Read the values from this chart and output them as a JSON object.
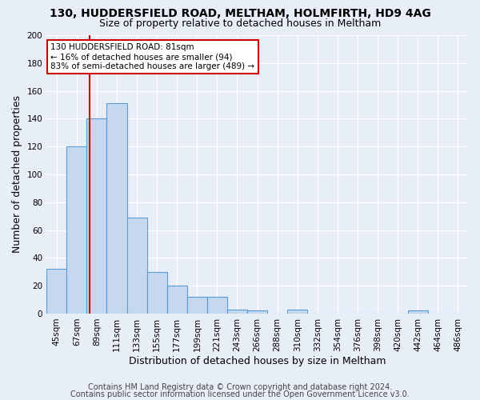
{
  "title1": "130, HUDDERSFIELD ROAD, MELTHAM, HOLMFIRTH, HD9 4AG",
  "title2": "Size of property relative to detached houses in Meltham",
  "xlabel": "Distribution of detached houses by size in Meltham",
  "ylabel": "Number of detached properties",
  "footer1": "Contains HM Land Registry data © Crown copyright and database right 2024.",
  "footer2": "Contains public sector information licensed under the Open Government Licence v3.0.",
  "bar_labels": [
    "45sqm",
    "67sqm",
    "89sqm",
    "111sqm",
    "133sqm",
    "155sqm",
    "177sqm",
    "199sqm",
    "221sqm",
    "243sqm",
    "266sqm",
    "288sqm",
    "310sqm",
    "332sqm",
    "354sqm",
    "376sqm",
    "398sqm",
    "420sqm",
    "442sqm",
    "464sqm",
    "486sqm"
  ],
  "bar_values": [
    32,
    120,
    140,
    151,
    69,
    30,
    20,
    12,
    12,
    3,
    2,
    0,
    3,
    0,
    0,
    0,
    0,
    0,
    2,
    0,
    0
  ],
  "bar_color": "#c5d8f0",
  "bar_edge_color": "#5b9bd5",
  "bar_width": 1.0,
  "annotation_text": "130 HUDDERSFIELD ROAD: 81sqm\n← 16% of detached houses are smaller (94)\n83% of semi-detached houses are larger (489) →",
  "annotation_box_color": "#ffffff",
  "annotation_box_edge": "#cc0000",
  "ylim": [
    0,
    200
  ],
  "yticks": [
    0,
    20,
    40,
    60,
    80,
    100,
    120,
    140,
    160,
    180,
    200
  ],
  "bg_color": "#e8eef8",
  "grid_color": "#ffffff",
  "title1_fontsize": 10,
  "title2_fontsize": 9,
  "axis_label_fontsize": 9,
  "tick_fontsize": 7.5,
  "annotation_fontsize": 7.5,
  "footer_fontsize": 7
}
